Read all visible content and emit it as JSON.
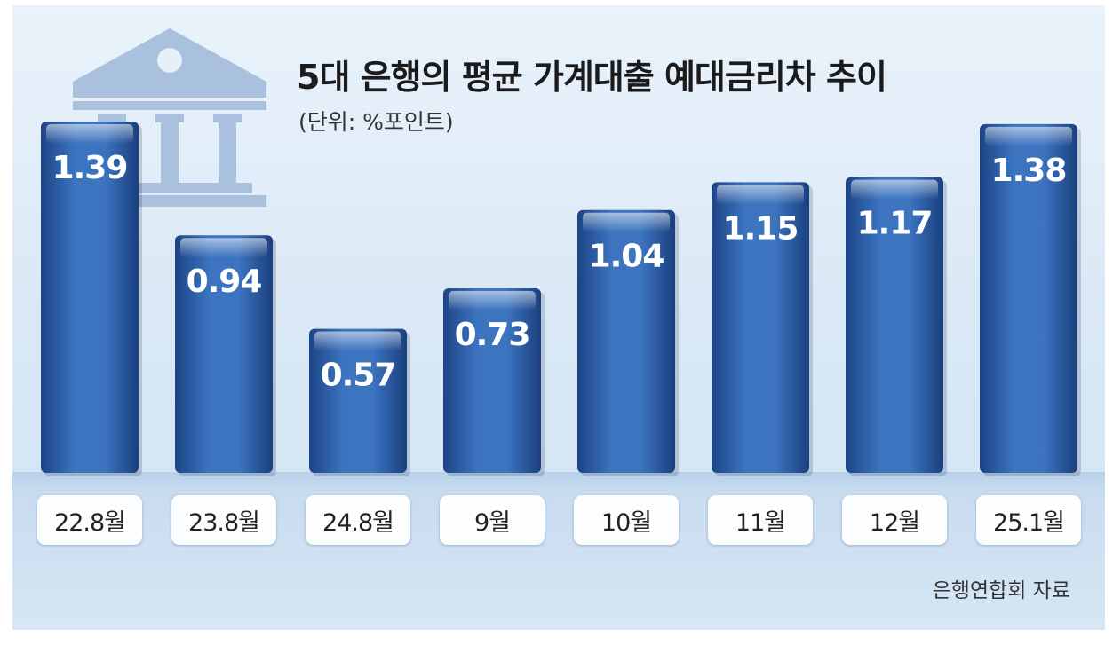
{
  "chart_data": {
    "type": "bar",
    "title": "5대 은행의 평균 가계대출 예대금리차 추이",
    "subtitle": "(단위: %포인트)",
    "categories": [
      "22.8월",
      "23.8월",
      "24.8월",
      "9월",
      "10월",
      "11월",
      "12월",
      "25.1월"
    ],
    "series": [
      {
        "values": [
          1.39,
          0.94,
          0.57,
          0.73,
          1.04,
          1.15,
          1.17,
          1.38
        ]
      }
    ],
    "data_labels": [
      "1.39",
      "0.94",
      "0.57",
      "0.73",
      "1.04",
      "1.15",
      "1.17",
      "1.38"
    ],
    "source": "은행연합회 자료",
    "grid": false,
    "legend": "none",
    "colors": {
      "bar": "#2f62ae",
      "bar_dark": "#1c4486",
      "label": "#ffffff"
    }
  },
  "decoration": {
    "icon": "bank-building-icon"
  }
}
